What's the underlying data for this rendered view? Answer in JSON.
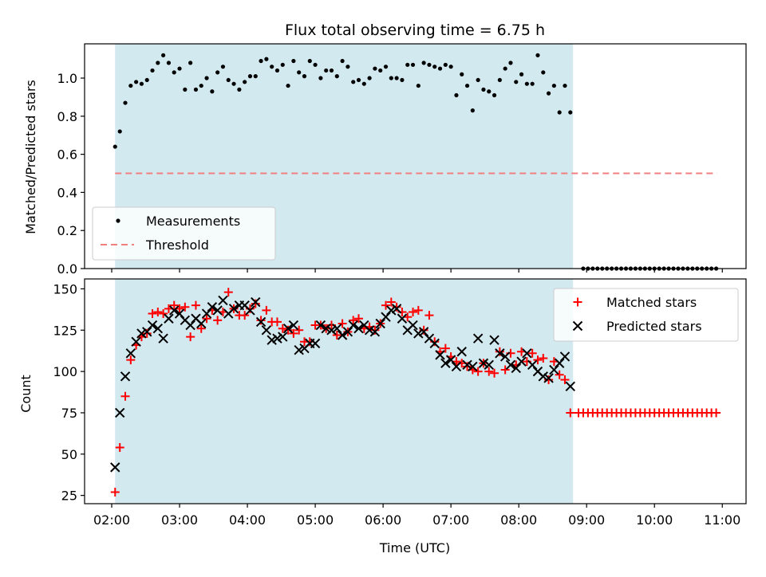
{
  "chart_data": {
    "title": "Flux total observing time = 6.75 h",
    "xlabel": "Time (UTC)",
    "x_unit": "hours (UTC)",
    "xlim": [
      1.6,
      11.35
    ],
    "xticks": [
      2,
      3,
      4,
      5,
      6,
      7,
      8,
      9,
      10,
      11
    ],
    "xtick_labels": [
      "02:00",
      "03:00",
      "04:00",
      "05:00",
      "06:00",
      "07:00",
      "08:00",
      "09:00",
      "10:00",
      "11:00"
    ],
    "shaded_span": {
      "start": 2.05,
      "end": 8.8,
      "color": "#d3e9f0"
    },
    "panels": [
      {
        "name": "ratio-panel",
        "type": "scatter",
        "ylabel": "Matched/Predicted stars",
        "ylim": [
          0,
          1.18
        ],
        "yticks": [
          0.0,
          0.2,
          0.4,
          0.6,
          0.8,
          1.0
        ],
        "ytick_labels": [
          "0.0",
          "0.2",
          "0.4",
          "0.6",
          "0.8",
          "1.0"
        ],
        "legend_position": "lower-left",
        "measurements": {
          "name": "Measurements",
          "color": "#000000",
          "x": [
            2.05,
            2.12,
            2.2,
            2.28,
            2.36,
            2.44,
            2.52,
            2.6,
            2.68,
            2.76,
            2.84,
            2.92,
            3.0,
            3.08,
            3.16,
            3.24,
            3.32,
            3.4,
            3.48,
            3.56,
            3.64,
            3.72,
            3.8,
            3.88,
            3.96,
            4.04,
            4.12,
            4.2,
            4.28,
            4.36,
            4.44,
            4.52,
            4.6,
            4.68,
            4.76,
            4.84,
            4.92,
            5.0,
            5.08,
            5.16,
            5.24,
            5.32,
            5.4,
            5.48,
            5.56,
            5.64,
            5.72,
            5.8,
            5.88,
            5.96,
            6.04,
            6.12,
            6.2,
            6.28,
            6.36,
            6.44,
            6.52,
            6.6,
            6.68,
            6.76,
            6.84,
            6.92,
            7.0,
            7.08,
            7.16,
            7.24,
            7.32,
            7.4,
            7.48,
            7.56,
            7.64,
            7.72,
            7.8,
            7.88,
            7.96,
            8.04,
            8.12,
            8.2,
            8.28,
            8.36,
            8.44,
            8.52,
            8.6,
            8.68,
            8.76
          ],
          "y": [
            0.64,
            0.72,
            0.87,
            0.96,
            0.98,
            0.97,
            0.99,
            1.04,
            1.08,
            1.12,
            1.08,
            1.03,
            1.05,
            0.94,
            1.08,
            0.94,
            0.96,
            1.0,
            0.93,
            1.03,
            1.06,
            0.99,
            0.97,
            0.94,
            0.98,
            1.01,
            1.01,
            1.09,
            1.1,
            1.06,
            1.04,
            1.07,
            0.96,
            1.09,
            1.03,
            1.01,
            1.09,
            1.07,
            1.0,
            1.04,
            1.04,
            1.01,
            1.09,
            1.06,
            0.98,
            0.99,
            0.97,
            1.0,
            1.05,
            1.04,
            1.06,
            1.0,
            1.0,
            0.99,
            1.07,
            1.07,
            0.96,
            1.08,
            1.07,
            1.06,
            1.05,
            1.07,
            1.06,
            0.91,
            1.02,
            0.96,
            0.83,
            0.99,
            0.94,
            0.93,
            0.91,
            0.99,
            1.05,
            1.08,
            0.98,
            1.02,
            0.97,
            0.97,
            1.12,
            1.03,
            0.92,
            0.96,
            0.82,
            0.96,
            0.82
          ]
        },
        "zero_points": {
          "color": "#000000",
          "x": [
            8.95,
            9.02,
            9.09,
            9.16,
            9.23,
            9.3,
            9.37,
            9.44,
            9.51,
            9.58,
            9.65,
            9.72,
            9.79,
            9.86,
            9.93,
            10.0,
            10.07,
            10.14,
            10.21,
            10.28,
            10.35,
            10.42,
            10.49,
            10.56,
            10.63,
            10.7,
            10.77,
            10.84,
            10.91
          ],
          "y_value": 0
        },
        "threshold": {
          "name": "Threshold",
          "y": 0.5,
          "x_start": 2.05,
          "x_end": 10.92,
          "color": "#f08080"
        }
      },
      {
        "name": "count-panel",
        "type": "scatter",
        "ylabel": "Count",
        "ylim": [
          20,
          156
        ],
        "yticks": [
          25,
          50,
          75,
          100,
          125,
          150
        ],
        "ytick_labels": [
          "25",
          "50",
          "75",
          "100",
          "125",
          "150"
        ],
        "legend_position": "upper-right",
        "series": [
          {
            "name": "Matched stars",
            "marker": "plus",
            "color": "#ff0000",
            "x": [
              2.05,
              2.12,
              2.2,
              2.28,
              2.36,
              2.44,
              2.52,
              2.6,
              2.68,
              2.76,
              2.84,
              2.92,
              3.0,
              3.08,
              3.16,
              3.24,
              3.32,
              3.4,
              3.48,
              3.56,
              3.64,
              3.72,
              3.8,
              3.88,
              3.96,
              4.04,
              4.12,
              4.2,
              4.28,
              4.36,
              4.44,
              4.52,
              4.6,
              4.68,
              4.76,
              4.84,
              4.92,
              5.0,
              5.08,
              5.16,
              5.24,
              5.32,
              5.4,
              5.48,
              5.56,
              5.64,
              5.72,
              5.8,
              5.88,
              5.96,
              6.04,
              6.12,
              6.2,
              6.28,
              6.36,
              6.44,
              6.52,
              6.6,
              6.68,
              6.76,
              6.84,
              6.92,
              7.0,
              7.08,
              7.16,
              7.24,
              7.32,
              7.4,
              7.48,
              7.56,
              7.64,
              7.72,
              7.8,
              7.88,
              7.96,
              8.04,
              8.12,
              8.2,
              8.28,
              8.36,
              8.44,
              8.52,
              8.6,
              8.68,
              8.76,
              8.88,
              8.95,
              9.02,
              9.09,
              9.16,
              9.23,
              9.3,
              9.37,
              9.44,
              9.51,
              9.58,
              9.65,
              9.72,
              9.79,
              9.86,
              9.93,
              10.0,
              10.07,
              10.14,
              10.21,
              10.28,
              10.35,
              10.42,
              10.49,
              10.56,
              10.63,
              10.7,
              10.77,
              10.84,
              10.91
            ],
            "y": [
              27,
              54,
              85,
              107,
              116,
              121,
              123,
              135,
              136,
              135,
              138,
              140,
              138,
              139,
              121,
              140,
              126,
              132,
              137,
              131,
              136,
              148,
              138,
              134,
              134,
              138,
              141,
              131,
              137,
              130,
              130,
              126,
              125,
              123,
              125,
              118,
              118,
              128,
              128,
              126,
              128,
              122,
              129,
              124,
              131,
              132,
              126,
              127,
              125,
              129,
              140,
              142,
              139,
              136,
              133,
              136,
              137,
              125,
              134,
              118,
              112,
              114,
              109,
              106,
              105,
              103,
              101,
              100,
              105,
              100,
              99,
              112,
              101,
              111,
              104,
              112,
              106,
              111,
              107,
              108,
              95,
              106,
              98,
              95,
              75,
              75,
              75,
              75,
              75,
              75,
              75,
              75,
              75,
              75,
              75,
              75,
              75,
              75,
              75,
              75,
              75,
              75,
              75,
              75,
              75,
              75,
              75,
              75,
              75,
              75,
              75,
              75,
              75,
              75,
              75
            ]
          },
          {
            "name": "Predicted stars",
            "marker": "x",
            "color": "#000000",
            "x": [
              2.05,
              2.12,
              2.2,
              2.28,
              2.36,
              2.44,
              2.52,
              2.6,
              2.68,
              2.76,
              2.84,
              2.92,
              3.0,
              3.08,
              3.16,
              3.24,
              3.32,
              3.4,
              3.48,
              3.56,
              3.64,
              3.72,
              3.8,
              3.88,
              3.96,
              4.04,
              4.12,
              4.2,
              4.28,
              4.36,
              4.44,
              4.52,
              4.6,
              4.68,
              4.76,
              4.84,
              4.92,
              5.0,
              5.08,
              5.16,
              5.24,
              5.32,
              5.4,
              5.48,
              5.56,
              5.64,
              5.72,
              5.8,
              5.88,
              5.96,
              6.04,
              6.12,
              6.2,
              6.28,
              6.36,
              6.44,
              6.52,
              6.6,
              6.68,
              6.76,
              6.84,
              6.92,
              7.0,
              7.08,
              7.16,
              7.24,
              7.32,
              7.4,
              7.48,
              7.56,
              7.64,
              7.72,
              7.8,
              7.88,
              7.96,
              8.04,
              8.12,
              8.2,
              8.28,
              8.36,
              8.44,
              8.52,
              8.6,
              8.68,
              8.76
            ],
            "y": [
              42,
              75,
              97,
              111,
              118,
              123,
              124,
              128,
              126,
              120,
              132,
              137,
              135,
              131,
              128,
              132,
              129,
              135,
              139,
              137,
              143,
              135,
              138,
              140,
              140,
              137,
              142,
              130,
              125,
              119,
              120,
              121,
              126,
              128,
              113,
              114,
              117,
              117,
              128,
              126,
              125,
              126,
              122,
              124,
              128,
              126,
              128,
              125,
              124,
              129,
              133,
              137,
              138,
              132,
              125,
              128,
              123,
              124,
              120,
              117,
              110,
              105,
              107,
              103,
              112,
              104,
              103,
              120,
              105,
              104,
              119,
              111,
              109,
              104,
              102,
              106,
              111,
              104,
              100,
              97,
              96,
              101,
              105,
              109,
              91
            ]
          }
        ]
      }
    ]
  }
}
